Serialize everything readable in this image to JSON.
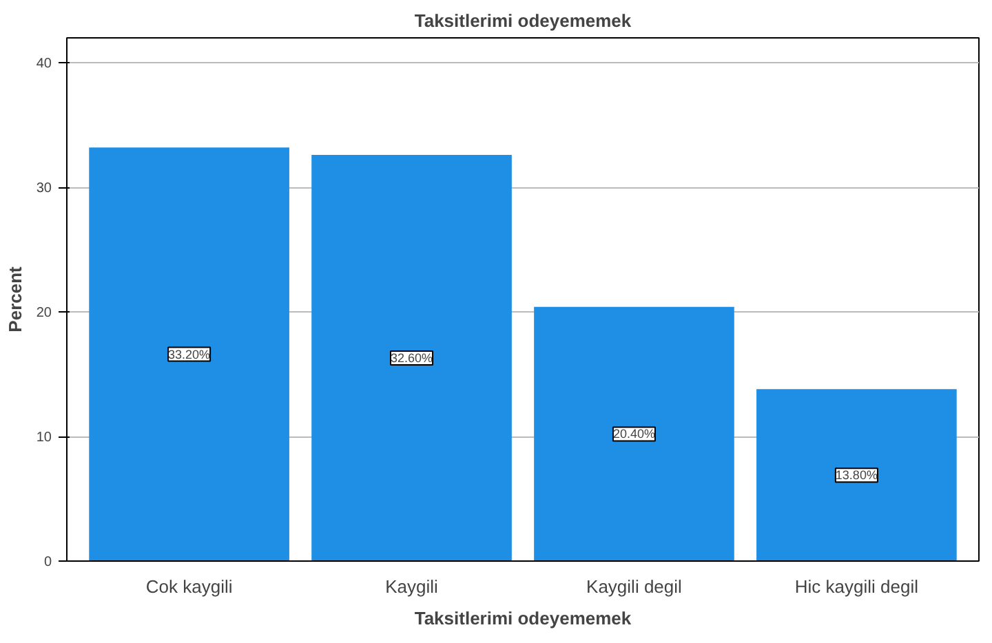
{
  "chart_data": {
    "type": "bar",
    "title": "Taksitlerimi odeyememek",
    "xlabel": "Taksitlerimi odeyememek",
    "ylabel": "Percent",
    "categories": [
      "Cok kaygili",
      "Kaygili",
      "Kaygili degil",
      "Hic kaygili degil"
    ],
    "values": [
      33.2,
      32.6,
      20.4,
      13.8
    ],
    "value_labels": [
      "33.20%",
      "32.60%",
      "20.40%",
      "13.80%"
    ],
    "color": "#1f8fe5",
    "ylim": [
      0,
      42
    ],
    "yticks": [
      0,
      10,
      20,
      30,
      40
    ],
    "grid": "y"
  }
}
